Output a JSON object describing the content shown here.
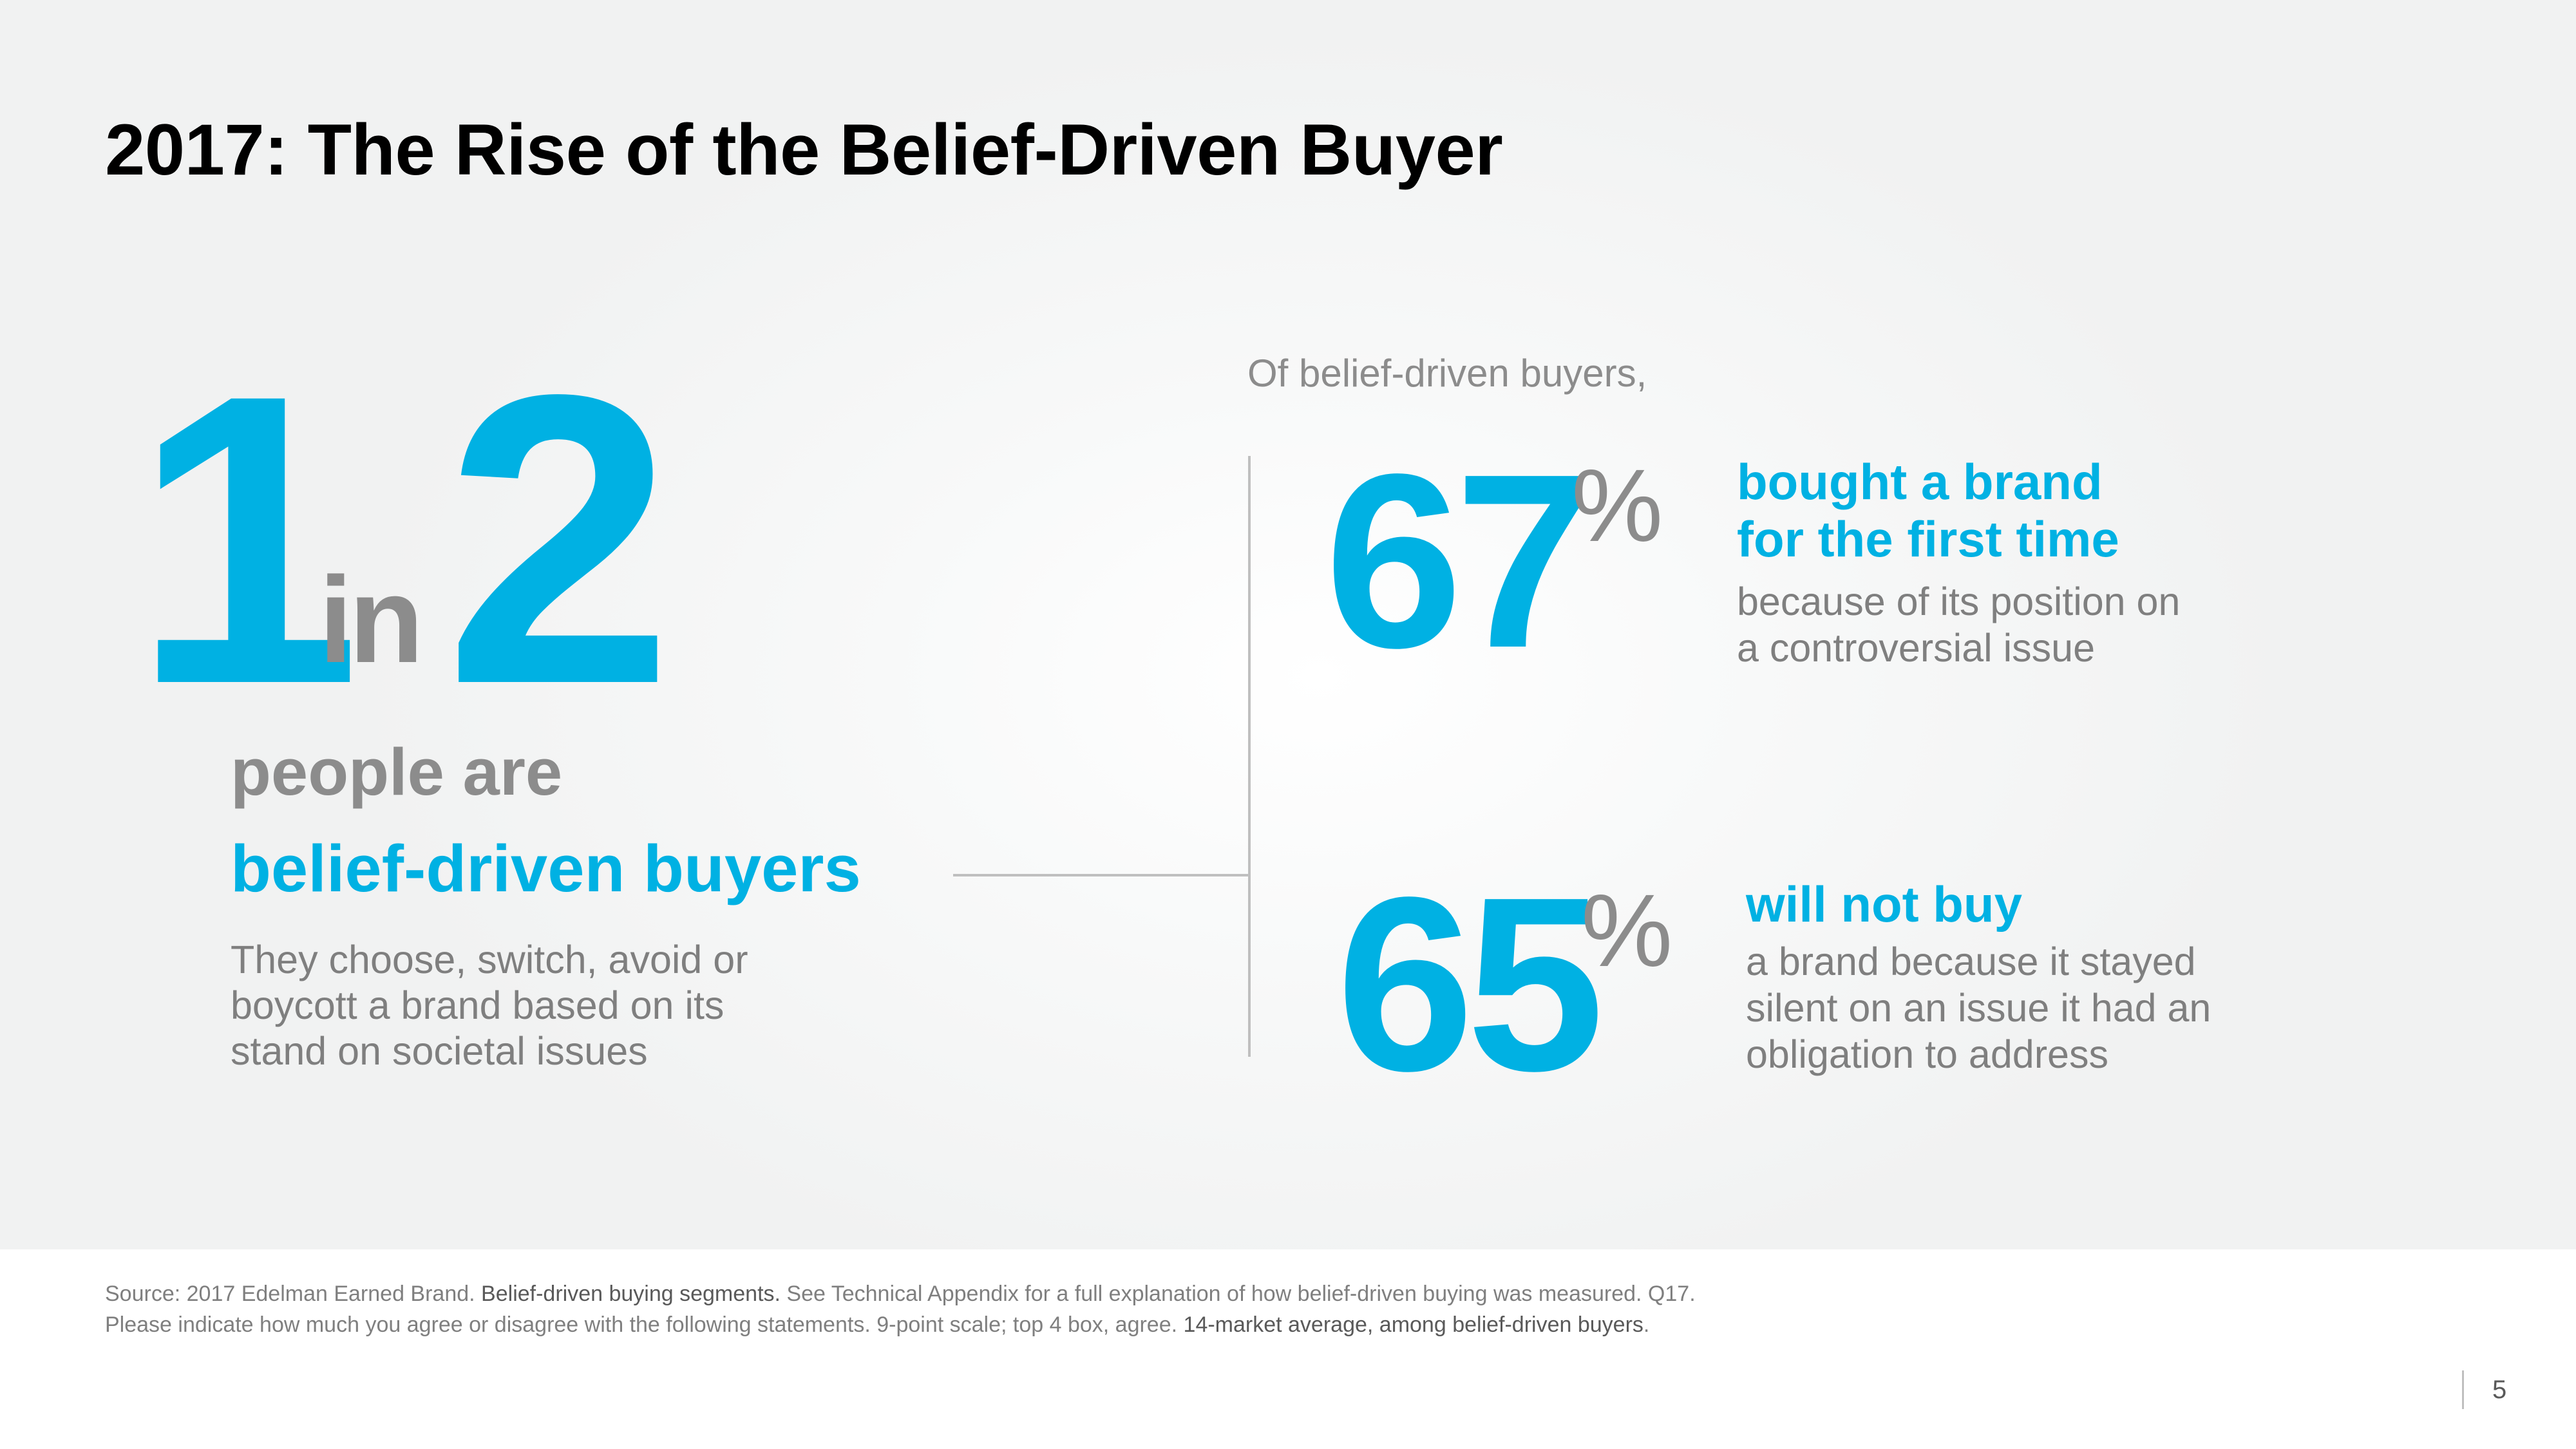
{
  "slide": {
    "title": "2017: The Rise of the Belief-Driven Buyer",
    "page_number": "5"
  },
  "headline_stat": {
    "numerator": "1",
    "connector": "in",
    "denominator": "2",
    "line1": "people are",
    "line2": "belief-driven buyers",
    "description_lines": [
      "They choose, switch, avoid or",
      "boycott a brand based on its",
      "stand on societal issues"
    ]
  },
  "breakdown": {
    "intro": "Of belief-driven buyers,",
    "stats": [
      {
        "value": "67",
        "unit": "%",
        "headline_lines": [
          "bought a brand",
          "for the first time"
        ],
        "description_lines": [
          "because of its position on",
          "a controversial issue"
        ]
      },
      {
        "value": "65",
        "unit": "%",
        "headline_lines": [
          "will not buy"
        ],
        "description_lines": [
          "a brand because it stayed",
          "silent on an issue it had an",
          "obligation to address"
        ]
      }
    ]
  },
  "footer": {
    "source_part1": "Source: 2017 Edelman Earned Brand. ",
    "source_part2": "Belief-driven buying segments.",
    "source_part3": " See Technical Appendix for a full explanation of how belief-driven buying was measured. Q17. Please indicate how much you agree or disagree with the following statements. 9-point scale; top 4 box, agree. ",
    "source_part4": "14-market average, among belief-driven buyers",
    "source_part5": "."
  },
  "colors": {
    "accent": "#00b1e3",
    "gray_text": "#7f7f7f",
    "title": "#000000"
  }
}
